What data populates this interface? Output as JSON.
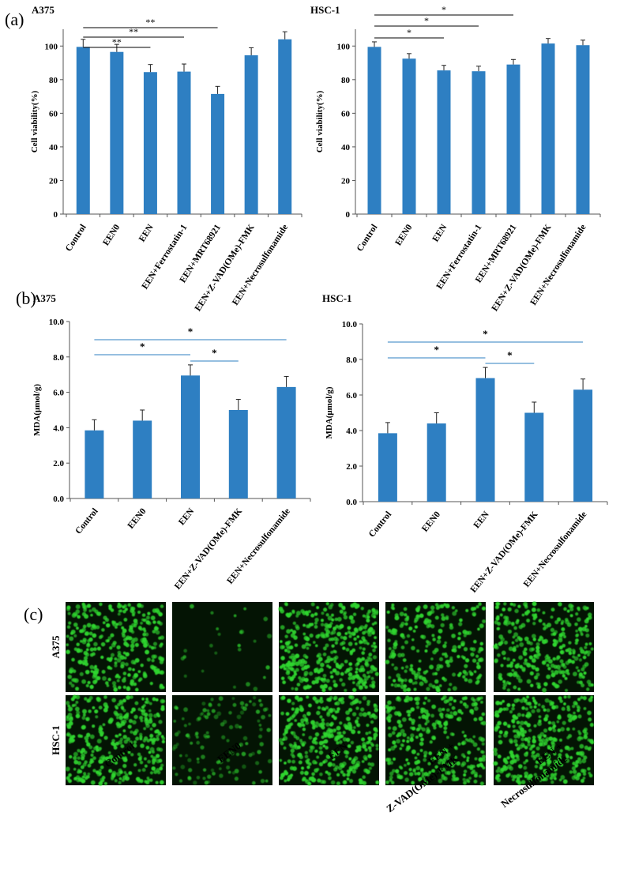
{
  "figure": {
    "panel_labels": [
      "(a)",
      "(b)",
      "(c)"
    ]
  },
  "chart_data": [
    {
      "type": "bar",
      "panel": "(a)",
      "title": "A375",
      "ylabel": "Cell viability(%)",
      "categories": [
        "Control",
        "EEN0",
        "EEN",
        "EEN+Ferrostatin-1",
        "EEN+MRT68921",
        "EEN+Z-VAD(OMe)-FMK",
        "EEN+Necrosulfonamide"
      ],
      "values": [
        99.5,
        96.5,
        84.5,
        84.8,
        71.5,
        94.5,
        104
      ],
      "errors": [
        4.5,
        4.5,
        4.5,
        4.5,
        4.5,
        4.5,
        4.5
      ],
      "ylim": [
        0,
        110
      ],
      "yticks": [
        0,
        20,
        40,
        60,
        80,
        100
      ],
      "ytick_labels": [
        "0",
        "20",
        "40",
        "60",
        "80",
        "100"
      ],
      "bar_color": "#2e7fc2",
      "sig_color": "#000000",
      "significance": [
        {
          "from": 0,
          "to": 2,
          "label": "**"
        },
        {
          "from": 0,
          "to": 3,
          "label": "**"
        },
        {
          "from": 0,
          "to": 4,
          "label": "**"
        }
      ],
      "grid": false
    },
    {
      "type": "bar",
      "panel": "(a)",
      "title": "HSC-1",
      "ylabel": "Cell viability(%)",
      "categories": [
        "Control",
        "EEN0",
        "EEN",
        "EEN+Ferrostatin-1",
        "EEN+MRT68921",
        "EEN+Z-VAD(OMe)-FMK",
        "EEN+Necrosulfonamide"
      ],
      "values": [
        99.5,
        92.5,
        85.5,
        85,
        89,
        101.5,
        100.5
      ],
      "errors": [
        3,
        3,
        3,
        3,
        3,
        3,
        3
      ],
      "ylim": [
        0,
        110
      ],
      "yticks": [
        0,
        20,
        40,
        60,
        80,
        100
      ],
      "ytick_labels": [
        "0",
        "20",
        "40",
        "60",
        "80",
        "100"
      ],
      "bar_color": "#2e7fc2",
      "sig_color": "#000000",
      "significance": [
        {
          "from": 0,
          "to": 2,
          "label": "*"
        },
        {
          "from": 0,
          "to": 3,
          "label": "*"
        },
        {
          "from": 0,
          "to": 4,
          "label": "*"
        }
      ],
      "grid": false
    },
    {
      "type": "bar",
      "panel": "(b)",
      "title": "A375",
      "ylabel": "MDA(μmol/g)",
      "categories": [
        "Control",
        "EEN0",
        "EEN",
        "EEN+Z-VAD(OMe)-FMK",
        "EEN+Necrosulfonamide"
      ],
      "values": [
        3.85,
        4.4,
        6.95,
        5.0,
        6.3
      ],
      "errors": [
        0.6,
        0.6,
        0.6,
        0.6,
        0.6
      ],
      "ylim": [
        0,
        10
      ],
      "yticks": [
        0,
        2,
        4,
        6,
        8,
        10
      ],
      "ytick_labels": [
        "0.0",
        "2.0",
        "4.0",
        "6.0",
        "8.0",
        "10.0"
      ],
      "bar_color": "#2e7fc2",
      "sig_color": "#2e7fc2",
      "significance": [
        {
          "from": 0,
          "to": 2,
          "label": "*"
        },
        {
          "from": 2,
          "to": 3,
          "label": "*"
        },
        {
          "from": 0,
          "to": 4,
          "label": "*"
        }
      ],
      "grid": false
    },
    {
      "type": "bar",
      "panel": "(b)",
      "title": "HSC-1",
      "ylabel": "MDA(μmol/g)",
      "categories": [
        "Control",
        "EEN0",
        "EEN",
        "EEN+Z-VAD(OMe)-FMK",
        "EEN+Necrosulfonamide"
      ],
      "values": [
        3.85,
        4.4,
        6.95,
        5.0,
        6.3
      ],
      "errors": [
        0.6,
        0.6,
        0.6,
        0.6,
        0.6
      ],
      "ylim": [
        0,
        10
      ],
      "yticks": [
        0,
        2,
        4,
        6,
        8,
        10
      ],
      "ytick_labels": [
        "0.0",
        "2.0",
        "4.0",
        "6.0",
        "8.0",
        "10.0"
      ],
      "bar_color": "#2e7fc2",
      "sig_color": "#2e7fc2",
      "significance": [
        {
          "from": 0,
          "to": 2,
          "label": "*"
        },
        {
          "from": 2,
          "to": 3,
          "label": "*"
        },
        {
          "from": 0,
          "to": 4,
          "label": "*"
        }
      ],
      "grid": false
    }
  ],
  "micrographs": {
    "rows": [
      "A375",
      "HSC-1"
    ],
    "columns": [
      {
        "lines": [
          "Control"
        ]
      },
      {
        "lines": [
          "EEN0"
        ]
      },
      {
        "lines": [
          "EEN"
        ]
      },
      {
        "lines": [
          "EEN +",
          "Z-VAD(OMe)-FMK"
        ]
      },
      {
        "lines": [
          "EEN +",
          "Necrosulfonamide"
        ]
      }
    ],
    "fluorescence_color": "#2fd62f",
    "background_color": "#041404",
    "density": [
      [
        0.75,
        0.06,
        0.85,
        0.55,
        0.7
      ],
      [
        0.8,
        0.3,
        0.85,
        0.7,
        0.85
      ]
    ]
  }
}
